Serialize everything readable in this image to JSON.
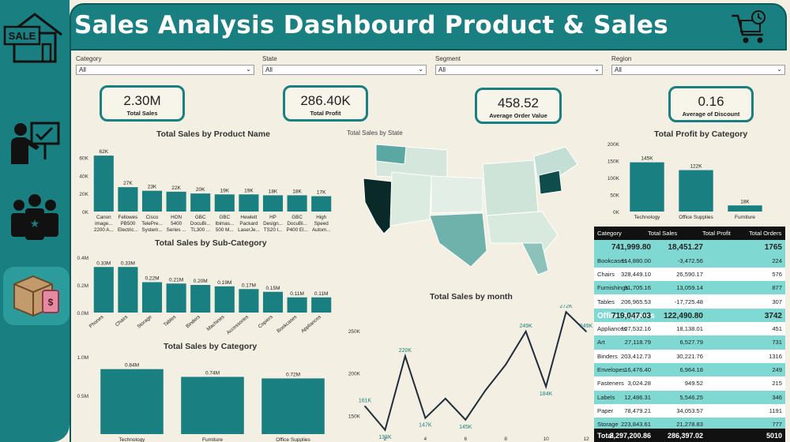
{
  "header": {
    "title": "Sales Analysis Dashbourd Product & Sales"
  },
  "icons": {
    "sidebar": [
      "sale-house-icon",
      "presentation-icon",
      "team-icon",
      "product-box-icon"
    ],
    "header": "shopping-cart-icon"
  },
  "slicers": [
    {
      "label": "Category",
      "value": "All"
    },
    {
      "label": "State",
      "value": "All"
    },
    {
      "label": "Segment",
      "value": "All"
    },
    {
      "label": "Region",
      "value": "All"
    }
  ],
  "kpis": [
    {
      "value": "2.30M",
      "label": "Total Sales"
    },
    {
      "value": "286.40K",
      "label": "Total Profit"
    },
    {
      "value": "458.52",
      "label": "Average Order Value"
    },
    {
      "value": "0.16",
      "label": "Average of Discount"
    }
  ],
  "colors": {
    "teal": "#1a7f80",
    "dark": "#0e5a5b",
    "highlight": "#7fd9d2",
    "line": "#1f2d3d"
  },
  "chart_data": [
    {
      "id": "product",
      "type": "bar",
      "title": "Total Sales by Product Name",
      "categories": [
        [
          "Canon",
          "image...",
          "2200 A..."
        ],
        [
          "Fellowes",
          "PB500",
          "Electric..."
        ],
        [
          "Cisco",
          "TelePre...",
          "System..."
        ],
        [
          "HON",
          "5400",
          "Series ..."
        ],
        [
          "GBC",
          "DocuBi...",
          "TL300 ..."
        ],
        [
          "GBC",
          "Ibimas...",
          "500 M..."
        ],
        [
          "Hewlett",
          "Packard",
          "LaserJe..."
        ],
        [
          "HP",
          "Design...",
          "TS20 l..."
        ],
        [
          "GBC",
          "DocuBi...",
          "P400 El..."
        ],
        [
          "High",
          "Speed",
          "Autom..."
        ]
      ],
      "values": [
        62,
        27,
        23,
        22,
        20,
        19,
        19,
        18,
        18,
        17
      ],
      "labels": [
        "62K",
        "27K",
        "23K",
        "22K",
        "20K",
        "19K",
        "19K",
        "18K",
        "18K",
        "17K"
      ],
      "yticks": [
        "0K",
        "20K",
        "40K",
        "60K"
      ],
      "ylim": [
        0,
        70
      ]
    },
    {
      "id": "subcategory",
      "type": "bar",
      "title": "Total Sales by Sub-Category",
      "categories": [
        "Phones",
        "Chairs",
        "Storage",
        "Tables",
        "Binders",
        "Machines",
        "Accessories",
        "Copiers",
        "Bookcases",
        "Appliances"
      ],
      "values": [
        0.33,
        0.33,
        0.22,
        0.21,
        0.2,
        0.19,
        0.17,
        0.15,
        0.11,
        0.11
      ],
      "labels": [
        "0.33M",
        "0.33M",
        "0.22M",
        "0.21M",
        "0.20M",
        "0.19M",
        "0.17M",
        "0.15M",
        "0.11M",
        "0.11M"
      ],
      "yticks": [
        "0.0M",
        "0.2M",
        "0.4M"
      ],
      "ylim": [
        0,
        0.4
      ]
    },
    {
      "id": "category",
      "type": "bar",
      "title": "Total Sales by Category",
      "categories": [
        "Technology",
        "Furniture",
        "Office Supplies"
      ],
      "values": [
        0.84,
        0.74,
        0.72
      ],
      "labels": [
        "0.84M",
        "0.74M",
        "0.72M"
      ],
      "yticks": [
        "0.5M",
        "1.0M"
      ],
      "ylim": [
        0,
        1.0
      ]
    },
    {
      "id": "profit",
      "type": "bar",
      "title": "Total Profit by Category",
      "categories": [
        "Technology",
        "Office Supplies",
        "Furniture"
      ],
      "values": [
        145,
        122,
        18
      ],
      "labels": [
        "145K",
        "122K",
        "18K"
      ],
      "yticks": [
        "0K",
        "50K",
        "100K",
        "150K",
        "200K"
      ],
      "ylim": [
        0,
        200
      ]
    },
    {
      "id": "month",
      "type": "line",
      "title": "Total Sales by month",
      "x": [
        1,
        2,
        3,
        4,
        5,
        6,
        7,
        8,
        9,
        10,
        11,
        12
      ],
      "values": [
        161,
        133,
        220,
        147,
        170,
        145,
        180,
        210,
        249,
        184,
        272,
        249
      ],
      "labels": [
        "161K",
        "133K",
        "220K",
        "147K",
        "",
        "145K",
        "",
        "",
        "249K",
        "184K",
        "272K",
        "249K"
      ],
      "xticks": [
        "2",
        "4",
        "6",
        "8",
        "10",
        "12"
      ],
      "yticks": [
        "150K",
        "200K",
        "250K"
      ],
      "ylim": [
        130,
        275
      ]
    },
    {
      "id": "map",
      "type": "map",
      "title": "Total Sales by State"
    }
  ],
  "table": {
    "columns": [
      "Category",
      "Total Sales",
      "Total Profit",
      "Total Orders"
    ],
    "rows": [
      {
        "name": "",
        "sales": "741,999.80",
        "profit": "18,451.27",
        "orders": "1765",
        "kind": "cat"
      },
      {
        "name": "Bookcases",
        "sales": "114,880.00",
        "profit": "-3,472.56",
        "orders": "224",
        "kind": "hl"
      },
      {
        "name": "Chairs",
        "sales": "328,449.10",
        "profit": "26,590.17",
        "orders": "576",
        "kind": ""
      },
      {
        "name": "Furnishings",
        "sales": "91,705.16",
        "profit": "13,059.14",
        "orders": "877",
        "kind": "hl"
      },
      {
        "name": "Tables",
        "sales": "206,965.53",
        "profit": "-17,725.48",
        "orders": "307",
        "kind": ""
      },
      {
        "name": "Office Supplies",
        "sales": "719,047.03",
        "profit": "122,490.80",
        "orders": "3742",
        "kind": "cathl"
      },
      {
        "name": "Appliances",
        "sales": "107,532.16",
        "profit": "18,138.01",
        "orders": "451",
        "kind": ""
      },
      {
        "name": "Art",
        "sales": "27,118.79",
        "profit": "6,527.79",
        "orders": "731",
        "kind": "hl"
      },
      {
        "name": "Binders",
        "sales": "203,412.73",
        "profit": "30,221.76",
        "orders": "1316",
        "kind": ""
      },
      {
        "name": "Envelopes",
        "sales": "16,476.40",
        "profit": "6,964.18",
        "orders": "249",
        "kind": "hl"
      },
      {
        "name": "Fasteners",
        "sales": "3,024.28",
        "profit": "949.52",
        "orders": "215",
        "kind": ""
      },
      {
        "name": "Labels",
        "sales": "12,486.31",
        "profit": "5,546.25",
        "orders": "346",
        "kind": "hl"
      },
      {
        "name": "Paper",
        "sales": "78,479.21",
        "profit": "34,053.57",
        "orders": "1191",
        "kind": ""
      },
      {
        "name": "Storage",
        "sales": "223,843.61",
        "profit": "21,278.83",
        "orders": "777",
        "kind": "hl"
      }
    ],
    "total": {
      "name": "Total",
      "sales": "2,297,200.86",
      "profit": "286,397.02",
      "orders": "5010"
    }
  }
}
